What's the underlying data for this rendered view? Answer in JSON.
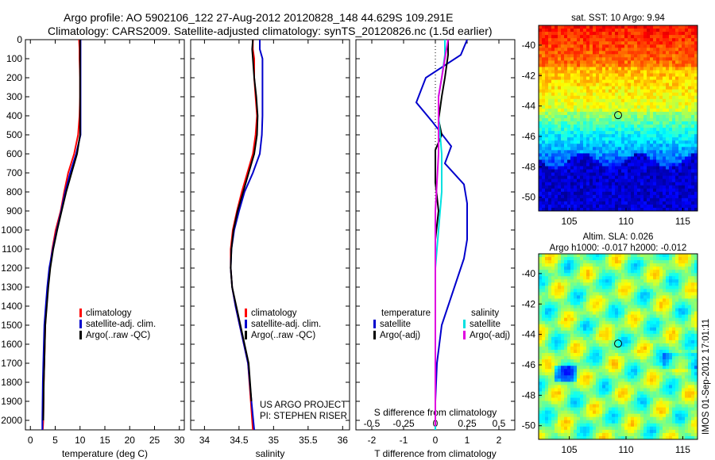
{
  "title": {
    "line1": "Argo profile: AO 5902106_122 27-Aug-2012 20120828_148 44.629S 109.291E",
    "line2": "Climatology: CARS2009. Satellite-adjusted climatology: synTS_20120826.nc (1.5d earlier)"
  },
  "watermark": "IMOS 01-Sep-2012 17:01:11",
  "colors": {
    "climatology": "#ff0000",
    "satellite": "#0000cc",
    "argo": "#000000",
    "satellite_s": "#00e0e0",
    "argo_s": "#e000e0"
  },
  "chart_data": [
    {
      "type": "line",
      "panel": "temperature",
      "xlabel": "temperature (deg C)",
      "ylabel": "",
      "xlim": [
        -1,
        31
      ],
      "ylim": [
        2050,
        0
      ],
      "xticks": [
        "0",
        "5",
        "10",
        "15",
        "20",
        "25",
        "30"
      ],
      "yticks": [
        "0",
        "100",
        "200",
        "300",
        "400",
        "500",
        "600",
        "700",
        "800",
        "900",
        "1000",
        "1100",
        "1200",
        "1300",
        "1400",
        "1500",
        "1600",
        "1700",
        "1800",
        "1900",
        "2000"
      ],
      "legend": [
        "climatology",
        "satellite-adj. clim.",
        "Argo(..raw -QC)"
      ],
      "series": [
        {
          "name": "climatology",
          "x": [
            9.8,
            9.9,
            9.9,
            10.0,
            10.0,
            9.9,
            9.6,
            8.8,
            7.6,
            6.8,
            6.1,
            5.1,
            4.4,
            3.9,
            3.5,
            3.2,
            3.0,
            2.8,
            2.7,
            2.6,
            2.5
          ],
          "y": [
            0,
            50,
            100,
            200,
            300,
            400,
            500,
            600,
            700,
            800,
            900,
            1000,
            1100,
            1200,
            1300,
            1400,
            1500,
            1700,
            1800,
            2000,
            2050
          ]
        },
        {
          "name": "satellite-adj. clim.",
          "x": [
            10.1,
            10.1,
            10.1,
            10.1,
            10.1,
            10.1,
            10.1,
            9.2,
            8.0,
            7.0,
            6.2,
            5.3,
            4.5,
            3.8,
            3.4,
            3.1,
            2.8,
            2.6,
            2.5,
            2.4,
            2.4
          ],
          "y": [
            0,
            50,
            100,
            200,
            300,
            400,
            500,
            600,
            700,
            800,
            900,
            1000,
            1100,
            1200,
            1300,
            1400,
            1500,
            1700,
            1800,
            2000,
            2050
          ]
        },
        {
          "name": "Argo(..raw -QC)",
          "x": [
            10.0,
            10.0,
            10.0,
            10.0,
            10.0,
            10.0,
            10.0,
            9.4,
            8.3,
            7.2,
            6.3,
            5.4,
            4.6,
            4.0,
            3.6,
            3.3,
            3.0,
            2.8,
            2.7,
            2.6
          ],
          "y": [
            0,
            50,
            100,
            200,
            300,
            400,
            500,
            600,
            700,
            800,
            900,
            1000,
            1100,
            1200,
            1300,
            1400,
            1500,
            1700,
            1800,
            2000
          ]
        }
      ]
    },
    {
      "type": "line",
      "panel": "salinity",
      "xlabel": "salinity",
      "ylabel": "",
      "xlim": [
        33.8,
        36.1
      ],
      "ylim": [
        2050,
        0
      ],
      "xticks": [
        "34",
        "34.5",
        "35",
        "35.5",
        "36"
      ],
      "legend": [
        "climatology",
        "satellite-adj. clim.",
        "Argo(..raw -QC)"
      ],
      "annotations": [
        "US ARGO PROJECT",
        "PI: STEPHEN RISER"
      ],
      "series": [
        {
          "name": "climatology",
          "x": [
            34.7,
            34.7,
            34.72,
            34.72,
            34.74,
            34.76,
            34.74,
            34.7,
            34.62,
            34.54,
            34.47,
            34.41,
            34.38,
            34.38,
            34.4,
            34.45,
            34.51,
            34.57,
            34.63,
            34.67,
            34.7
          ],
          "y": [
            0,
            50,
            100,
            200,
            300,
            400,
            500,
            600,
            700,
            800,
            900,
            1000,
            1100,
            1200,
            1300,
            1400,
            1500,
            1600,
            1700,
            1900,
            2050
          ]
        },
        {
          "name": "satellite-adj. clim.",
          "x": [
            34.8,
            34.8,
            34.84,
            34.84,
            34.84,
            34.84,
            34.83,
            34.8,
            34.7,
            34.58,
            34.5,
            34.43,
            34.39,
            34.38,
            34.4,
            34.45,
            34.51,
            34.57,
            34.63,
            34.68,
            34.72
          ],
          "y": [
            0,
            50,
            100,
            200,
            300,
            400,
            500,
            600,
            700,
            800,
            900,
            1000,
            1100,
            1200,
            1300,
            1400,
            1500,
            1600,
            1700,
            1900,
            2050
          ]
        },
        {
          "name": "Argo(..raw -QC)",
          "x": [
            34.7,
            34.69,
            34.7,
            34.72,
            34.75,
            34.77,
            34.76,
            34.72,
            34.64,
            34.56,
            34.48,
            34.42,
            34.39,
            34.38,
            34.4,
            34.46,
            34.52,
            34.58,
            34.64,
            34.68
          ],
          "y": [
            0,
            50,
            100,
            200,
            300,
            400,
            500,
            600,
            700,
            800,
            900,
            1000,
            1100,
            1200,
            1300,
            1400,
            1500,
            1600,
            1700,
            1900
          ]
        }
      ]
    },
    {
      "type": "line",
      "panel": "difference",
      "xlabel": "T difference from climatology",
      "ylabel": "",
      "xlim": [
        -2.5,
        2.5
      ],
      "ylim": [
        2050,
        0
      ],
      "xticks": [
        "-2",
        "-1",
        "0",
        "1",
        "2"
      ],
      "top_xlabel": "S difference from climatology",
      "top_xticks": [
        "-0.5",
        "-0.25",
        "0",
        "0.25",
        "0.5"
      ],
      "legend": [
        "temperature",
        "satellite",
        "Argo(-adj)",
        "salinity",
        "satellite",
        "Argo(-adj)"
      ],
      "series": [
        {
          "name": "satellite",
          "group": "temperature",
          "x": [
            1.0,
            0.8,
            -0.3,
            -0.6,
            -0.1,
            0.5,
            0.3,
            0.9,
            1.0,
            1.0,
            1.0,
            0.9,
            0.6,
            0.4,
            0.2,
            0.05,
            0.0,
            0.0
          ],
          "y": [
            0,
            80,
            200,
            330,
            430,
            560,
            650,
            760,
            860,
            950,
            1050,
            1150,
            1300,
            1400,
            1500,
            1700,
            1900,
            2050
          ]
        },
        {
          "name": "Argo(-adj)",
          "group": "temperature",
          "x": [
            0.4,
            0.4,
            0.3,
            0.2,
            0.1,
            0.2,
            0.0,
            0.0,
            0.1,
            0.0,
            0.0,
            0.0,
            0.0,
            0.0
          ],
          "y": [
            0,
            80,
            200,
            300,
            420,
            500,
            580,
            750,
            900,
            1050,
            1300,
            1600,
            1900,
            2030
          ]
        },
        {
          "name": "satellite",
          "group": "salinity",
          "x": [
            0.3,
            0.3,
            0.2,
            0.1,
            0.1,
            0.2,
            0.2,
            0.1,
            0.0,
            0.0,
            0.0,
            0.0,
            0.0
          ],
          "y": [
            0,
            80,
            200,
            300,
            400,
            600,
            800,
            1000,
            1200,
            1400,
            1600,
            1800,
            2050
          ]
        },
        {
          "name": "Argo(-adj)",
          "group": "salinity",
          "x": [
            0.4,
            0.3,
            0.2,
            0.1,
            0.1,
            0.1,
            0.0,
            0.0,
            0.0,
            0.0
          ],
          "y": [
            0,
            100,
            200,
            300,
            400,
            600,
            900,
            1200,
            1600,
            2030
          ]
        }
      ]
    },
    {
      "type": "heatmap",
      "panel": "sst-map",
      "title": "sat. SST: 10 Argo: 9.94",
      "xticks": [
        "105",
        "110",
        "115"
      ],
      "yticks": [
        "-40",
        "-42",
        "-44",
        "-46",
        "-48",
        "-50"
      ],
      "xlim": [
        102.3,
        116.3
      ],
      "ylim": [
        -50.9,
        -38.7
      ],
      "marker": {
        "lon": 109.3,
        "lat": -44.6
      }
    },
    {
      "type": "heatmap",
      "panel": "sla-map",
      "title": "Altim. SLA: 0.026",
      "subtitle": "Argo h1000: -0.017 h2000: -0.012",
      "xticks": [
        "105",
        "110",
        "115"
      ],
      "yticks": [
        "-40",
        "-42",
        "-44",
        "-46",
        "-48",
        "-50"
      ],
      "xlim": [
        102.3,
        116.3
      ],
      "ylim": [
        -50.9,
        -38.7
      ],
      "marker": {
        "lon": 109.3,
        "lat": -44.6
      }
    }
  ]
}
